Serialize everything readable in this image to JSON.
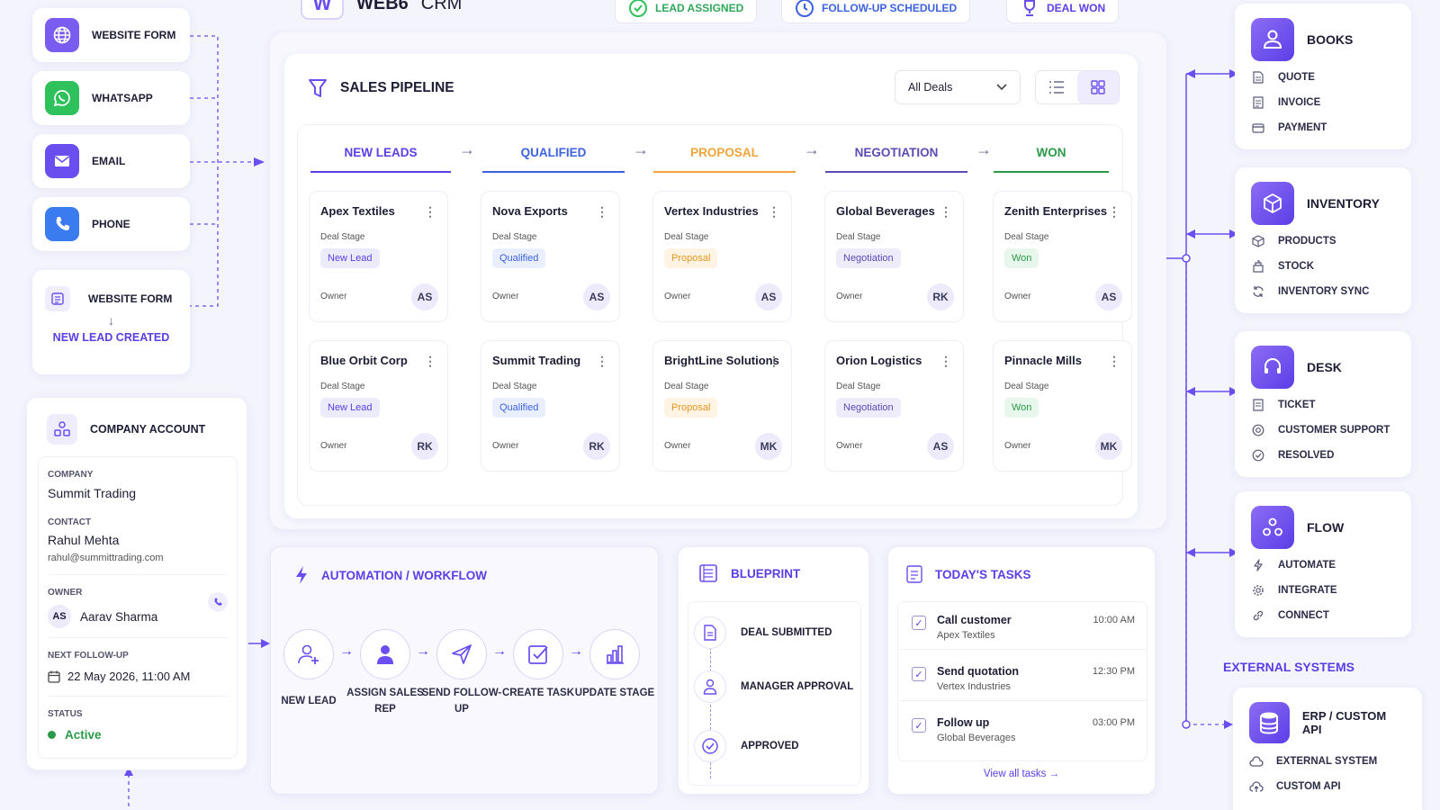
{
  "header": {
    "logo_letter": "W",
    "app_name": "WEB6",
    "app_suffix": "CRM",
    "chips": [
      "LEAD ASSIGNED",
      "FOLLOW-UP SCHEDULED",
      "DEAL WON"
    ]
  },
  "sources": {
    "items": [
      {
        "label": "WEBSITE FORM",
        "icon": "globe-icon",
        "color": "#7b5cf0"
      },
      {
        "label": "WHATSAPP",
        "icon": "whatsapp-icon",
        "color": "#2fc15b"
      },
      {
        "label": "EMAIL",
        "icon": "mail-icon",
        "color": "#6b4ef0"
      },
      {
        "label": "PHONE",
        "icon": "phone-icon",
        "color": "#3a7bf0"
      }
    ],
    "form_card": {
      "label": "WEBSITE FORM",
      "result": "NEW LEAD CREATED"
    }
  },
  "pipeline": {
    "title": "SALES PIPELINE",
    "filter_value": "All Deals",
    "stages": [
      {
        "label": "NEW LEADS",
        "color": "#5b3ee6"
      },
      {
        "label": "QUALIFIED",
        "color": "#3c62e0"
      },
      {
        "label": "PROPOSAL",
        "color": "#f0a43a"
      },
      {
        "label": "NEGOTIATION",
        "color": "#5b4bb5"
      },
      {
        "label": "WON",
        "color": "#2a9a48"
      }
    ],
    "stage_field_label": "Deal Stage",
    "owner_field_label": "Owner",
    "deals": [
      [
        {
          "name": "Apex Textiles",
          "stage": "New Lead",
          "owner": "AS"
        },
        {
          "name": "Blue Orbit Corp",
          "stage": "New Lead",
          "owner": "RK"
        }
      ],
      [
        {
          "name": "Nova Exports",
          "stage": "Qualified",
          "owner": "AS"
        },
        {
          "name": "Summit Trading",
          "stage": "Qualified",
          "owner": "RK"
        }
      ],
      [
        {
          "name": "Vertex Industries",
          "stage": "Proposal",
          "owner": "AS"
        },
        {
          "name": "BrightLine Solutions",
          "stage": "Proposal",
          "owner": "MK"
        }
      ],
      [
        {
          "name": "Global Beverages",
          "stage": "Negotiation",
          "owner": "RK"
        },
        {
          "name": "Orion Logistics",
          "stage": "Negotiation",
          "owner": "AS"
        }
      ],
      [
        {
          "name": "Zenith Enterprises",
          "stage": "Won",
          "owner": "AS"
        },
        {
          "name": "Pinnacle Mills",
          "stage": "Won",
          "owner": "MK"
        }
      ]
    ]
  },
  "company": {
    "title": "COMPANY ACCOUNT",
    "company_label": "COMPANY",
    "company_value": "Summit Trading",
    "contact_label": "CONTACT",
    "contact_name": "Rahul Mehta",
    "contact_email": "rahul@summittrading.com",
    "owner_label": "OWNER",
    "owner_initials": "AS",
    "owner_name": "Aarav Sharma",
    "followup_label": "NEXT FOLLOW-UP",
    "followup_value": "22 May 2026, 11:00 AM",
    "status_label": "STATUS",
    "status_value": "Active",
    "status_color": "#2a9a48"
  },
  "automation": {
    "title": "AUTOMATION / WORKFLOW",
    "steps": [
      {
        "label": "NEW LEAD",
        "icon": "user-plus-icon"
      },
      {
        "label": "ASSIGN SALES REP",
        "icon": "user-icon"
      },
      {
        "label": "SEND FOLLOW-UP",
        "icon": "send-icon"
      },
      {
        "label": "CREATE TASK",
        "icon": "checkbox-icon"
      },
      {
        "label": "UPDATE STAGE",
        "icon": "bar-chart-icon"
      }
    ]
  },
  "blueprint": {
    "title": "BLUEPRINT",
    "steps": [
      "DEAL SUBMITTED",
      "MANAGER APPROVAL",
      "APPROVED"
    ]
  },
  "tasks": {
    "title": "TODAY'S TASKS",
    "items": [
      {
        "title": "Call customer",
        "company": "Apex Textiles",
        "time": "10:00 AM"
      },
      {
        "title": "Send quotation",
        "company": "Vertex Industries",
        "time": "12:30 PM"
      },
      {
        "title": "Follow up",
        "company": "Global Beverages",
        "time": "03:00 PM"
      }
    ],
    "view_all": "View all tasks"
  },
  "modules": [
    {
      "title": "BOOKS",
      "icon": "books-user-icon",
      "items": [
        "QUOTE",
        "INVOICE",
        "PAYMENT"
      ]
    },
    {
      "title": "INVENTORY",
      "icon": "box-icon",
      "items": [
        "PRODUCTS",
        "STOCK",
        "INVENTORY SYNC"
      ]
    },
    {
      "title": "DESK",
      "icon": "headset-icon",
      "items": [
        "TICKET",
        "CUSTOMER SUPPORT",
        "RESOLVED"
      ]
    },
    {
      "title": "FLOW",
      "icon": "flow-icon",
      "items": [
        "AUTOMATE",
        "INTEGRATE",
        "CONNECT"
      ]
    }
  ],
  "external": {
    "section_label": "EXTERNAL SYSTEMS",
    "title": "ERP / CUSTOM API",
    "items": [
      "EXTERNAL SYSTEM",
      "CUSTOM API"
    ]
  }
}
